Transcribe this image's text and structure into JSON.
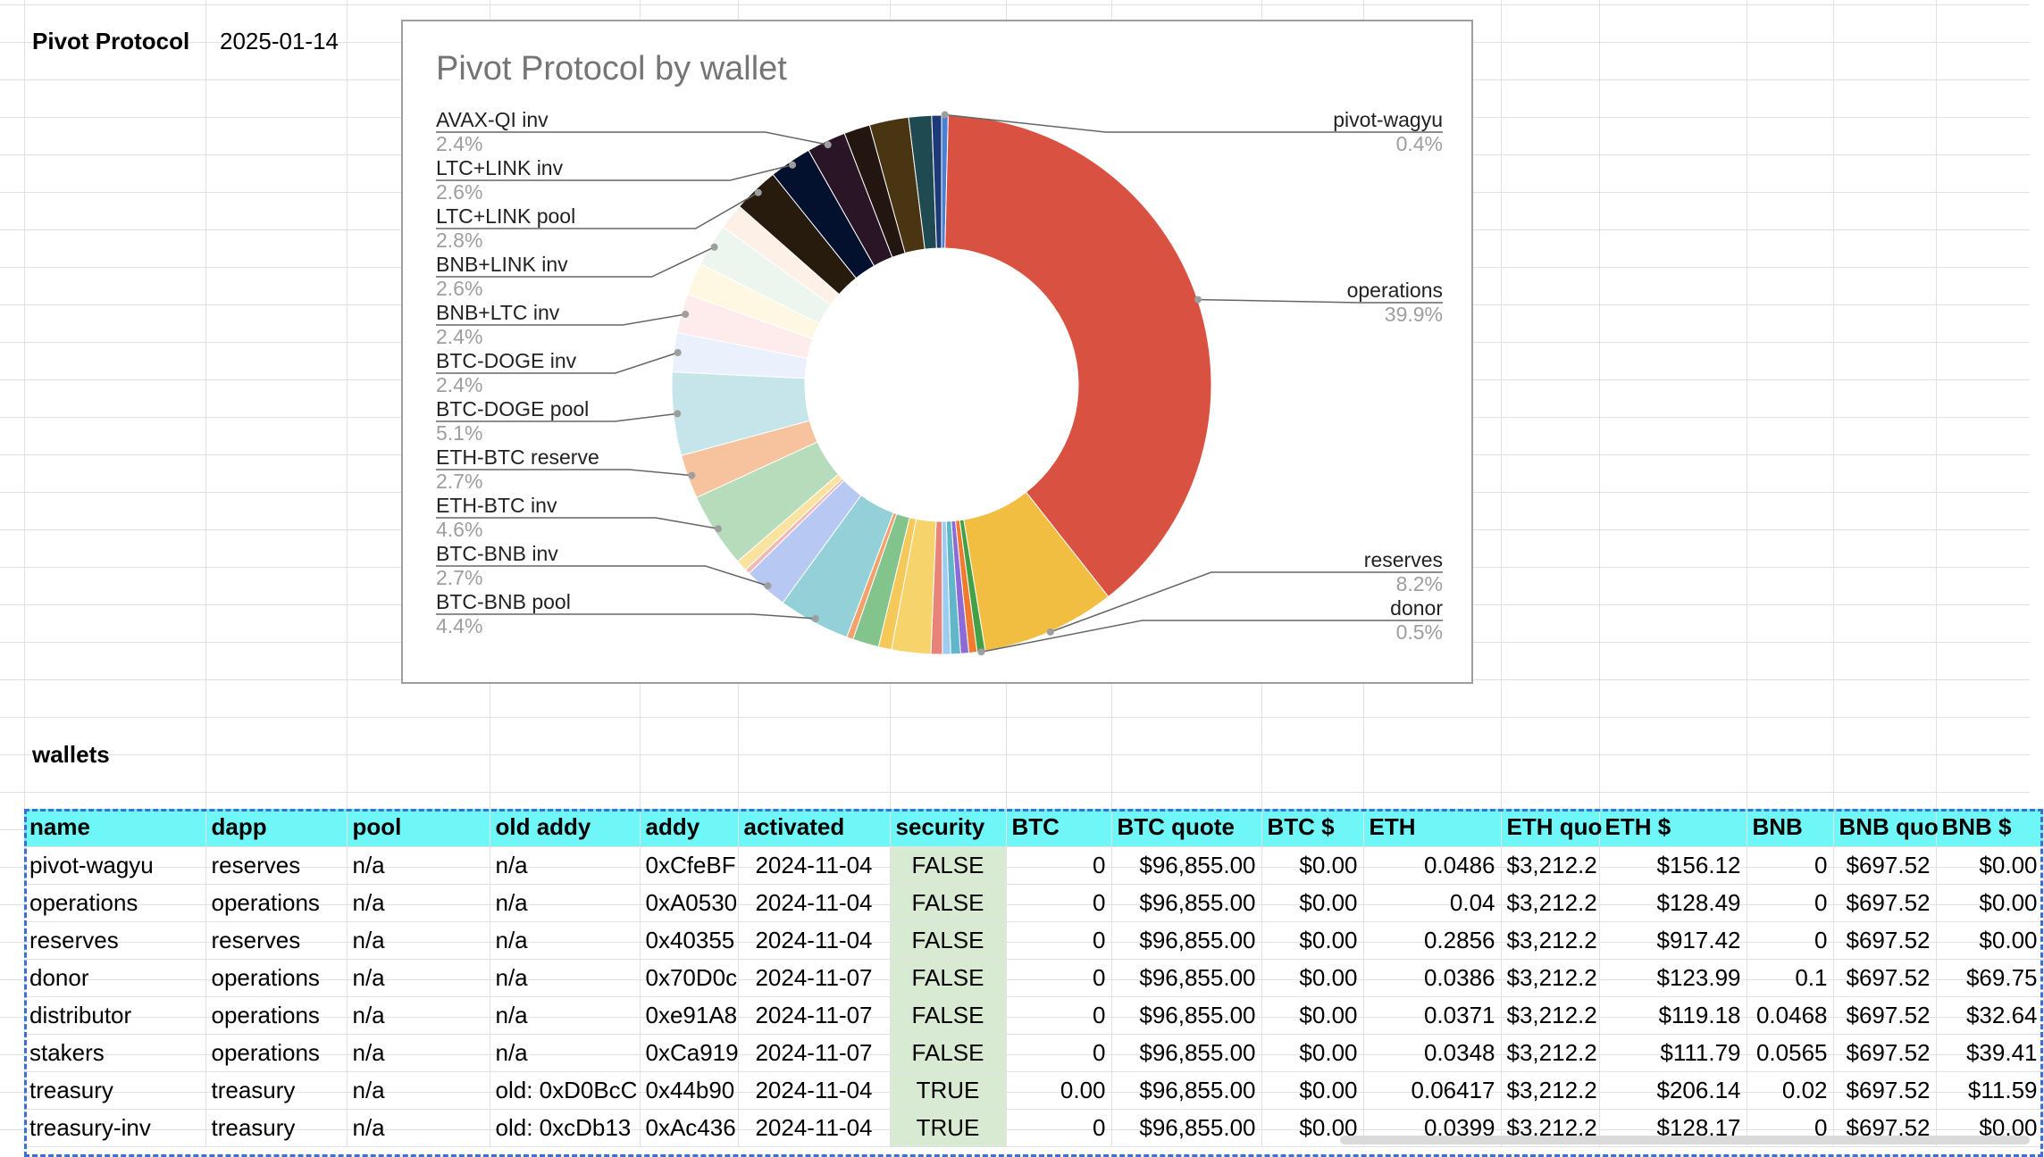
{
  "sheet": {
    "title": "Pivot Protocol",
    "date": "2025-01-14",
    "wallets_label": "wallets"
  },
  "chart_data": {
    "type": "pie",
    "donut": true,
    "title": "Pivot Protocol by wallet",
    "slices": [
      {
        "label": "pivot-wagyu",
        "value": 0.4,
        "pct": "0.4%",
        "color": "#4a7fd4",
        "labeled": true
      },
      {
        "label": "operations",
        "value": 39.9,
        "pct": "39.9%",
        "color": "#d95140",
        "labeled": true
      },
      {
        "label": "reserves",
        "value": 8.2,
        "pct": "8.2%",
        "color": "#f2be42",
        "labeled": true
      },
      {
        "label": "donor",
        "value": 0.5,
        "pct": "0.5%",
        "color": "#43a047",
        "labeled": true
      },
      {
        "label": "",
        "value": 0.5,
        "pct": "",
        "color": "#f07b2c",
        "labeled": false
      },
      {
        "label": "",
        "value": 0.5,
        "pct": "",
        "color": "#8e6ad6",
        "labeled": false
      },
      {
        "label": "",
        "value": 0.6,
        "pct": "",
        "color": "#5fb7c9",
        "labeled": false
      },
      {
        "label": "",
        "value": 0.5,
        "pct": "",
        "color": "#9ecbf0",
        "labeled": false
      },
      {
        "label": "",
        "value": 0.7,
        "pct": "",
        "color": "#e8837a",
        "labeled": false
      },
      {
        "label": "",
        "value": 2.4,
        "pct": "",
        "color": "#f6d36b",
        "labeled": false
      },
      {
        "label": "",
        "value": 0.8,
        "pct": "",
        "color": "#f4c95a",
        "labeled": false
      },
      {
        "label": "",
        "value": 1.6,
        "pct": "",
        "color": "#83c48c",
        "labeled": false
      },
      {
        "label": "",
        "value": 0.4,
        "pct": "",
        "color": "#f2a06c",
        "labeled": false
      },
      {
        "label": "BTC-BNB pool",
        "value": 4.4,
        "pct": "4.4%",
        "color": "#93d0d8",
        "labeled": true
      },
      {
        "label": "BTC-BNB inv",
        "value": 2.7,
        "pct": "2.7%",
        "color": "#b7c9f3",
        "labeled": true
      },
      {
        "label": "",
        "value": 0.3,
        "pct": "",
        "color": "#f2b8b3",
        "labeled": false
      },
      {
        "label": "",
        "value": 0.7,
        "pct": "",
        "color": "#fae29f",
        "labeled": false
      },
      {
        "label": "ETH-BTC inv",
        "value": 4.6,
        "pct": "4.6%",
        "color": "#b6dcbc",
        "labeled": true
      },
      {
        "label": "ETH-BTC reserve",
        "value": 2.7,
        "pct": "2.7%",
        "color": "#f6c39e",
        "labeled": true
      },
      {
        "label": "BTC-DOGE pool",
        "value": 5.1,
        "pct": "5.1%",
        "color": "#c5e5ea",
        "labeled": true
      },
      {
        "label": "BTC-DOGE inv",
        "value": 2.4,
        "pct": "2.4%",
        "color": "#eaf1fc",
        "labeled": true
      },
      {
        "label": "BNB+LTC inv",
        "value": 2.4,
        "pct": "2.4%",
        "color": "#fdeceb",
        "labeled": true
      },
      {
        "label": "",
        "value": 2.0,
        "pct": "",
        "color": "#fef8e3",
        "labeled": false
      },
      {
        "label": "BNB+LINK inv",
        "value": 2.6,
        "pct": "2.6%",
        "color": "#edf6ee",
        "labeled": true
      },
      {
        "label": "",
        "value": 1.6,
        "pct": "",
        "color": "#fdf0e6",
        "labeled": false
      },
      {
        "label": "LTC+LINK pool",
        "value": 2.8,
        "pct": "2.8%",
        "color": "#261b0c",
        "labeled": true
      },
      {
        "label": "LTC+LINK inv",
        "value": 2.6,
        "pct": "2.6%",
        "color": "#03102e",
        "labeled": true
      },
      {
        "label": "AVAX-QI inv",
        "value": 2.4,
        "pct": "2.4%",
        "color": "#2a1526",
        "labeled": true
      },
      {
        "label": "",
        "value": 1.6,
        "pct": "",
        "color": "#231510",
        "labeled": false
      },
      {
        "label": "",
        "value": 2.4,
        "pct": "",
        "color": "#4a3512",
        "labeled": false
      },
      {
        "label": "",
        "value": 1.4,
        "pct": "",
        "color": "#1f4a52",
        "labeled": false
      },
      {
        "label": "",
        "value": 0.6,
        "pct": "",
        "color": "#1d3a78",
        "labeled": false
      }
    ]
  },
  "table": {
    "columns": [
      "name",
      "dapp",
      "pool",
      "old addy",
      "addy",
      "activated",
      "security",
      "BTC",
      "BTC quote",
      "BTC $",
      "ETH",
      "ETH quo",
      "ETH $",
      "BNB",
      "BNB quo",
      "BNB $"
    ],
    "rows": [
      [
        "pivot-wagyu",
        "reserves",
        "n/a",
        "n/a",
        "0xCfeBF",
        "2024-11-04",
        "FALSE",
        "0",
        "$96,855.00",
        "$0.00",
        "0.0486",
        "$3,212.2",
        "$156.12",
        "0",
        "$697.52",
        "$0.00"
      ],
      [
        "operations",
        "operations",
        "n/a",
        "n/a",
        "0xA0530",
        "2024-11-04",
        "FALSE",
        "0",
        "$96,855.00",
        "$0.00",
        "0.04",
        "$3,212.2",
        "$128.49",
        "0",
        "$697.52",
        "$0.00"
      ],
      [
        "reserves",
        "reserves",
        "n/a",
        "n/a",
        "0x40355",
        "2024-11-04",
        "FALSE",
        "0",
        "$96,855.00",
        "$0.00",
        "0.2856",
        "$3,212.2",
        "$917.42",
        "0",
        "$697.52",
        "$0.00"
      ],
      [
        "donor",
        "operations",
        "n/a",
        "n/a",
        "0x70D0c",
        "2024-11-07",
        "FALSE",
        "0",
        "$96,855.00",
        "$0.00",
        "0.0386",
        "$3,212.2",
        "$123.99",
        "0.1",
        "$697.52",
        "$69.75"
      ],
      [
        "distributor",
        "operations",
        "n/a",
        "n/a",
        "0xe91A8",
        "2024-11-07",
        "FALSE",
        "0",
        "$96,855.00",
        "$0.00",
        "0.0371",
        "$3,212.2",
        "$119.18",
        "0.0468",
        "$697.52",
        "$32.64"
      ],
      [
        "stakers",
        "operations",
        "n/a",
        "n/a",
        "0xCa919",
        "2024-11-07",
        "FALSE",
        "0",
        "$96,855.00",
        "$0.00",
        "0.0348",
        "$3,212.2",
        "$111.79",
        "0.0565",
        "$697.52",
        "$39.41"
      ],
      [
        "treasury",
        "treasury",
        "n/a",
        "old: 0xD0BcC",
        "0x44b90",
        "2024-11-04",
        "TRUE",
        "0.00",
        "$96,855.00",
        "$0.00",
        "0.06417",
        "$3,212.2",
        "$206.14",
        "0.02",
        "$697.52",
        "$11.59"
      ],
      [
        "treasury-inv",
        "treasury",
        "n/a",
        "old: 0xcDb13",
        "0xAc436",
        "2024-11-04",
        "TRUE",
        "0",
        "$96,855.00",
        "$0.00",
        "0.0399",
        "$3,212.2",
        "$128.17",
        "0",
        "$697.52",
        "$0.00"
      ]
    ]
  }
}
